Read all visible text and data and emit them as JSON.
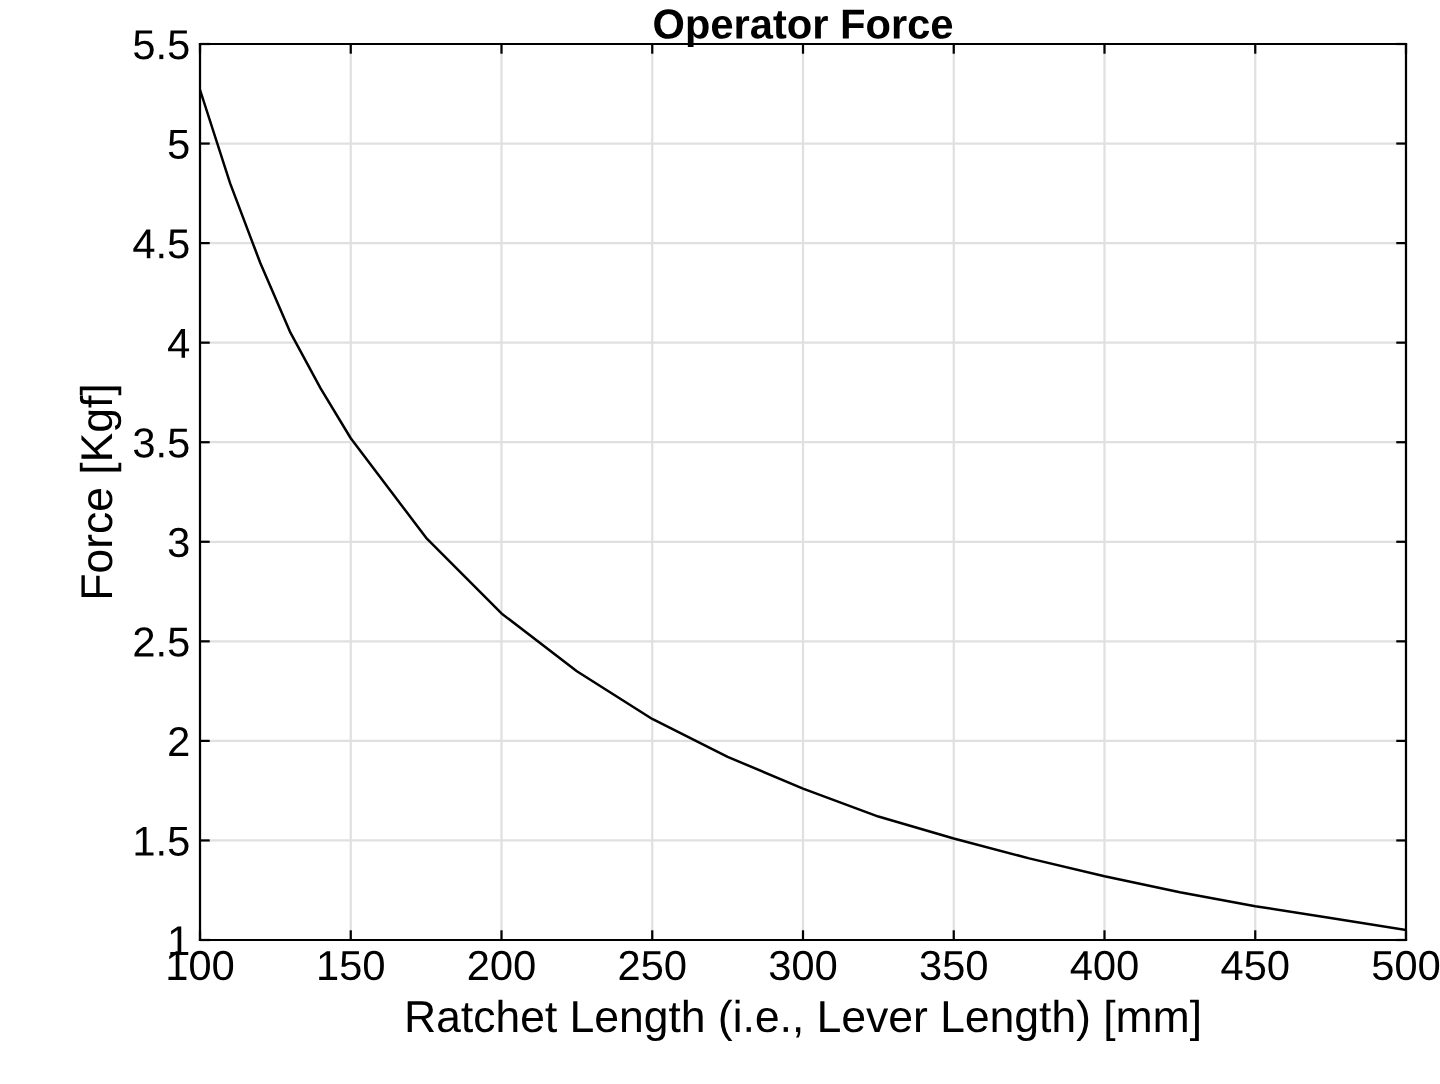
{
  "chart_data": {
    "type": "line",
    "title": "Operator Force",
    "xlabel": "Ratchet Length (i.e., Lever Length) [mm]",
    "ylabel": "Force [Kgf]",
    "x": [
      100,
      110,
      120,
      130,
      140,
      150,
      175,
      200,
      225,
      250,
      275,
      300,
      325,
      350,
      375,
      400,
      425,
      450,
      475,
      500
    ],
    "series": [
      {
        "color": "#000000",
        "values": [
          5.27,
          4.8,
          4.4,
          4.05,
          3.77,
          3.52,
          3.02,
          2.64,
          2.35,
          2.11,
          1.92,
          1.76,
          1.62,
          1.51,
          1.41,
          1.32,
          1.24,
          1.17,
          1.11,
          1.05
        ]
      }
    ],
    "xlim": [
      100,
      500
    ],
    "xticks": [
      100,
      150,
      200,
      250,
      300,
      350,
      400,
      450,
      500
    ],
    "ylim": [
      1,
      5.5
    ],
    "yticks": [
      1,
      1.5,
      2,
      2.5,
      3,
      3.5,
      4,
      4.5,
      5,
      5.5
    ],
    "grid": true,
    "marker": "none",
    "line_style": "solid"
  }
}
